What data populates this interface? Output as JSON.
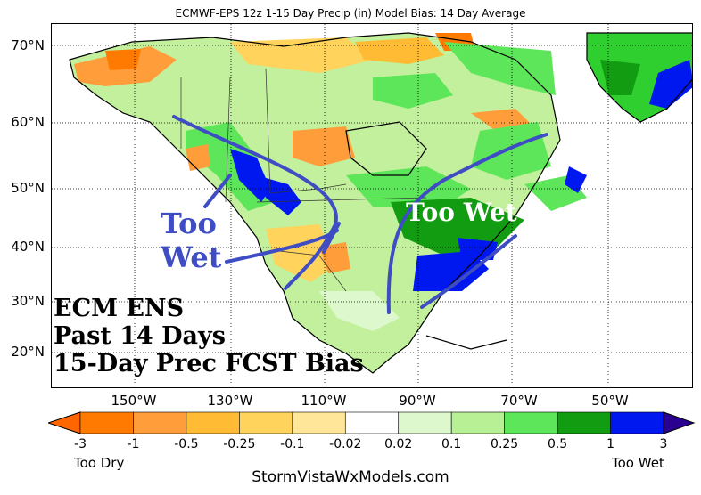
{
  "title": "ECMWF-EPS 12z 1-15 Day Precip (in) Model Bias: 14 Day Average",
  "latitude_labels": [
    "70°N",
    "60°N",
    "50°N",
    "40°N",
    "30°N",
    "20°N"
  ],
  "longitude_labels": [
    "150°W",
    "130°W",
    "110°W",
    "90°W",
    "70°W",
    "50°W"
  ],
  "annotations": {
    "too_wet_west": [
      "Too",
      "Wet"
    ],
    "too_wet_east": "Too Wet",
    "too_wet_color": "#3e4dc4",
    "east_label_color": "#ffffff",
    "info_lines": [
      "ECM ENS",
      "Past 14 Days",
      "15-Day Prec FCST Bias"
    ]
  },
  "colorbar": {
    "ticks": [
      "-3",
      "-1",
      "-0.5",
      "-0.25",
      "-0.1",
      "-0.02",
      "0.02",
      "0.1",
      "0.25",
      "0.5",
      "1",
      "3"
    ],
    "colors": [
      "#ff7a00",
      "#ff9d3a",
      "#ffbb33",
      "#ffd35c",
      "#ffe699",
      "#ffffff",
      "#ddf8cc",
      "#b8f095",
      "#5ee65a",
      "#129c12",
      "#0018f0"
    ],
    "under_color": "#ff6600",
    "over_color": "#2a0090",
    "low_label": "Too Dry",
    "high_label": "Too Wet"
  },
  "credit": "StormVistaWxModels.com"
}
